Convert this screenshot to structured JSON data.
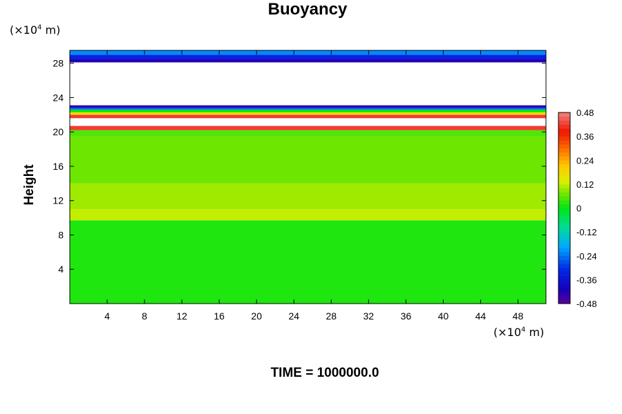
{
  "chart_data": {
    "type": "heatmap",
    "title": "Buoyancy",
    "ylabel": "Height",
    "xlabel": "",
    "x_unit": "(×10⁴ m)",
    "y_unit": "(×10⁴ m)",
    "footer": "TIME = 1000000.0",
    "xlim": [
      0,
      51
    ],
    "ylim": [
      0,
      29.5
    ],
    "x_ticks": [
      4,
      8,
      12,
      16,
      20,
      24,
      28,
      32,
      36,
      40,
      44,
      48
    ],
    "y_ticks": [
      4,
      8,
      12,
      16,
      20,
      24,
      28
    ],
    "colorbar": {
      "min": -0.48,
      "max": 0.48,
      "tick_values": [
        0.48,
        0.36,
        0.24,
        0.12,
        0,
        -0.12,
        -0.24,
        -0.36,
        -0.48
      ],
      "tick_labels": [
        "0.48",
        "0.36",
        "0.24",
        "0.12",
        "0",
        "-0.12",
        "-0.24",
        "-0.36",
        "-0.48"
      ]
    },
    "layers": [
      {
        "y_from": 0,
        "y_to": 9.7,
        "value": 0.02
      },
      {
        "y_from": 9.7,
        "y_to": 11.0,
        "value": 0.12
      },
      {
        "y_from": 11.0,
        "y_to": 14.0,
        "value": 0.1
      },
      {
        "y_from": 14.0,
        "y_to": 19.5,
        "value": 0.07
      },
      {
        "y_from": 19.5,
        "y_to": 20.2,
        "value": 0.05
      },
      {
        "y_from": 20.2,
        "y_to": 20.7,
        "value": 0.42
      },
      {
        "y_from": 20.7,
        "y_to": 21.6,
        "value": null
      },
      {
        "y_from": 21.6,
        "y_to": 22.0,
        "value": 0.42
      },
      {
        "y_from": 22.0,
        "y_to": 22.3,
        "value": 0.18
      },
      {
        "y_from": 22.3,
        "y_to": 22.6,
        "value": 0.0
      },
      {
        "y_from": 22.6,
        "y_to": 22.8,
        "value": -0.25
      },
      {
        "y_from": 22.8,
        "y_to": 23.1,
        "value": -0.42
      },
      {
        "y_from": 23.1,
        "y_to": 28.1,
        "value": null
      },
      {
        "y_from": 28.1,
        "y_to": 28.5,
        "value": -0.42
      },
      {
        "y_from": 28.5,
        "y_to": 29.0,
        "value": -0.32
      },
      {
        "y_from": 29.0,
        "y_to": 29.5,
        "value": -0.22
      }
    ]
  }
}
